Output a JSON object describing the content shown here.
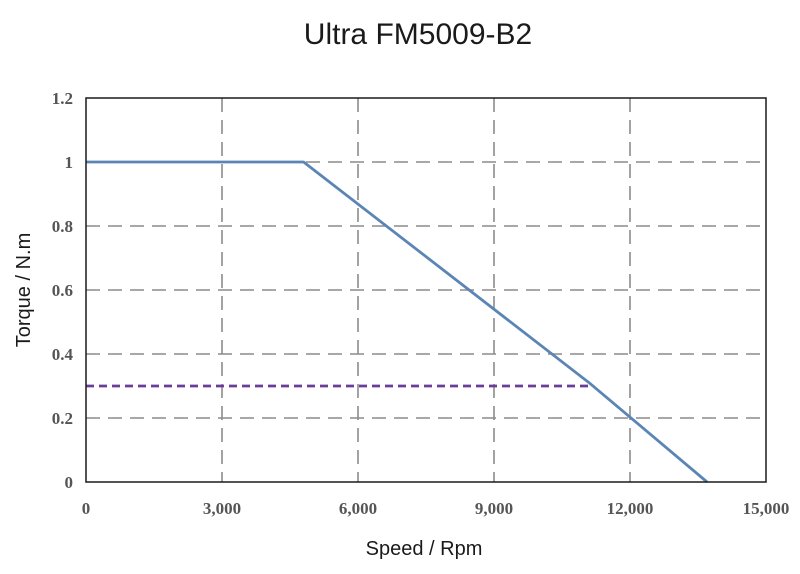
{
  "chart_data": {
    "type": "line",
    "title": "Ultra FM5009-B2",
    "xlabel": "Speed / Rpm",
    "ylabel": "Torque / N.m",
    "xlim": [
      0,
      15000
    ],
    "ylim": [
      0,
      1.2
    ],
    "x_ticks": [
      0,
      3000,
      6000,
      9000,
      12000,
      15000
    ],
    "x_tick_labels": [
      "0",
      "3,000",
      "6,000",
      "9,000",
      "12,000",
      "15,000"
    ],
    "y_ticks": [
      0,
      0.2,
      0.4,
      0.6,
      0.8,
      1,
      1.2
    ],
    "y_tick_labels": [
      "0",
      "0.2",
      "0.4",
      "0.6",
      "0.8",
      "1",
      "1.2"
    ],
    "grid": true,
    "legend": "none",
    "series": [
      {
        "color": "#5b85b5",
        "style": "solid",
        "points": [
          [
            0,
            1.0
          ],
          [
            4800,
            1.0
          ],
          [
            11100,
            0.31
          ],
          [
            13700,
            0.0
          ]
        ]
      },
      {
        "color": "#6a3d9a",
        "style": "dashed",
        "points": [
          [
            0,
            0.3
          ],
          [
            11100,
            0.3
          ]
        ]
      }
    ]
  }
}
